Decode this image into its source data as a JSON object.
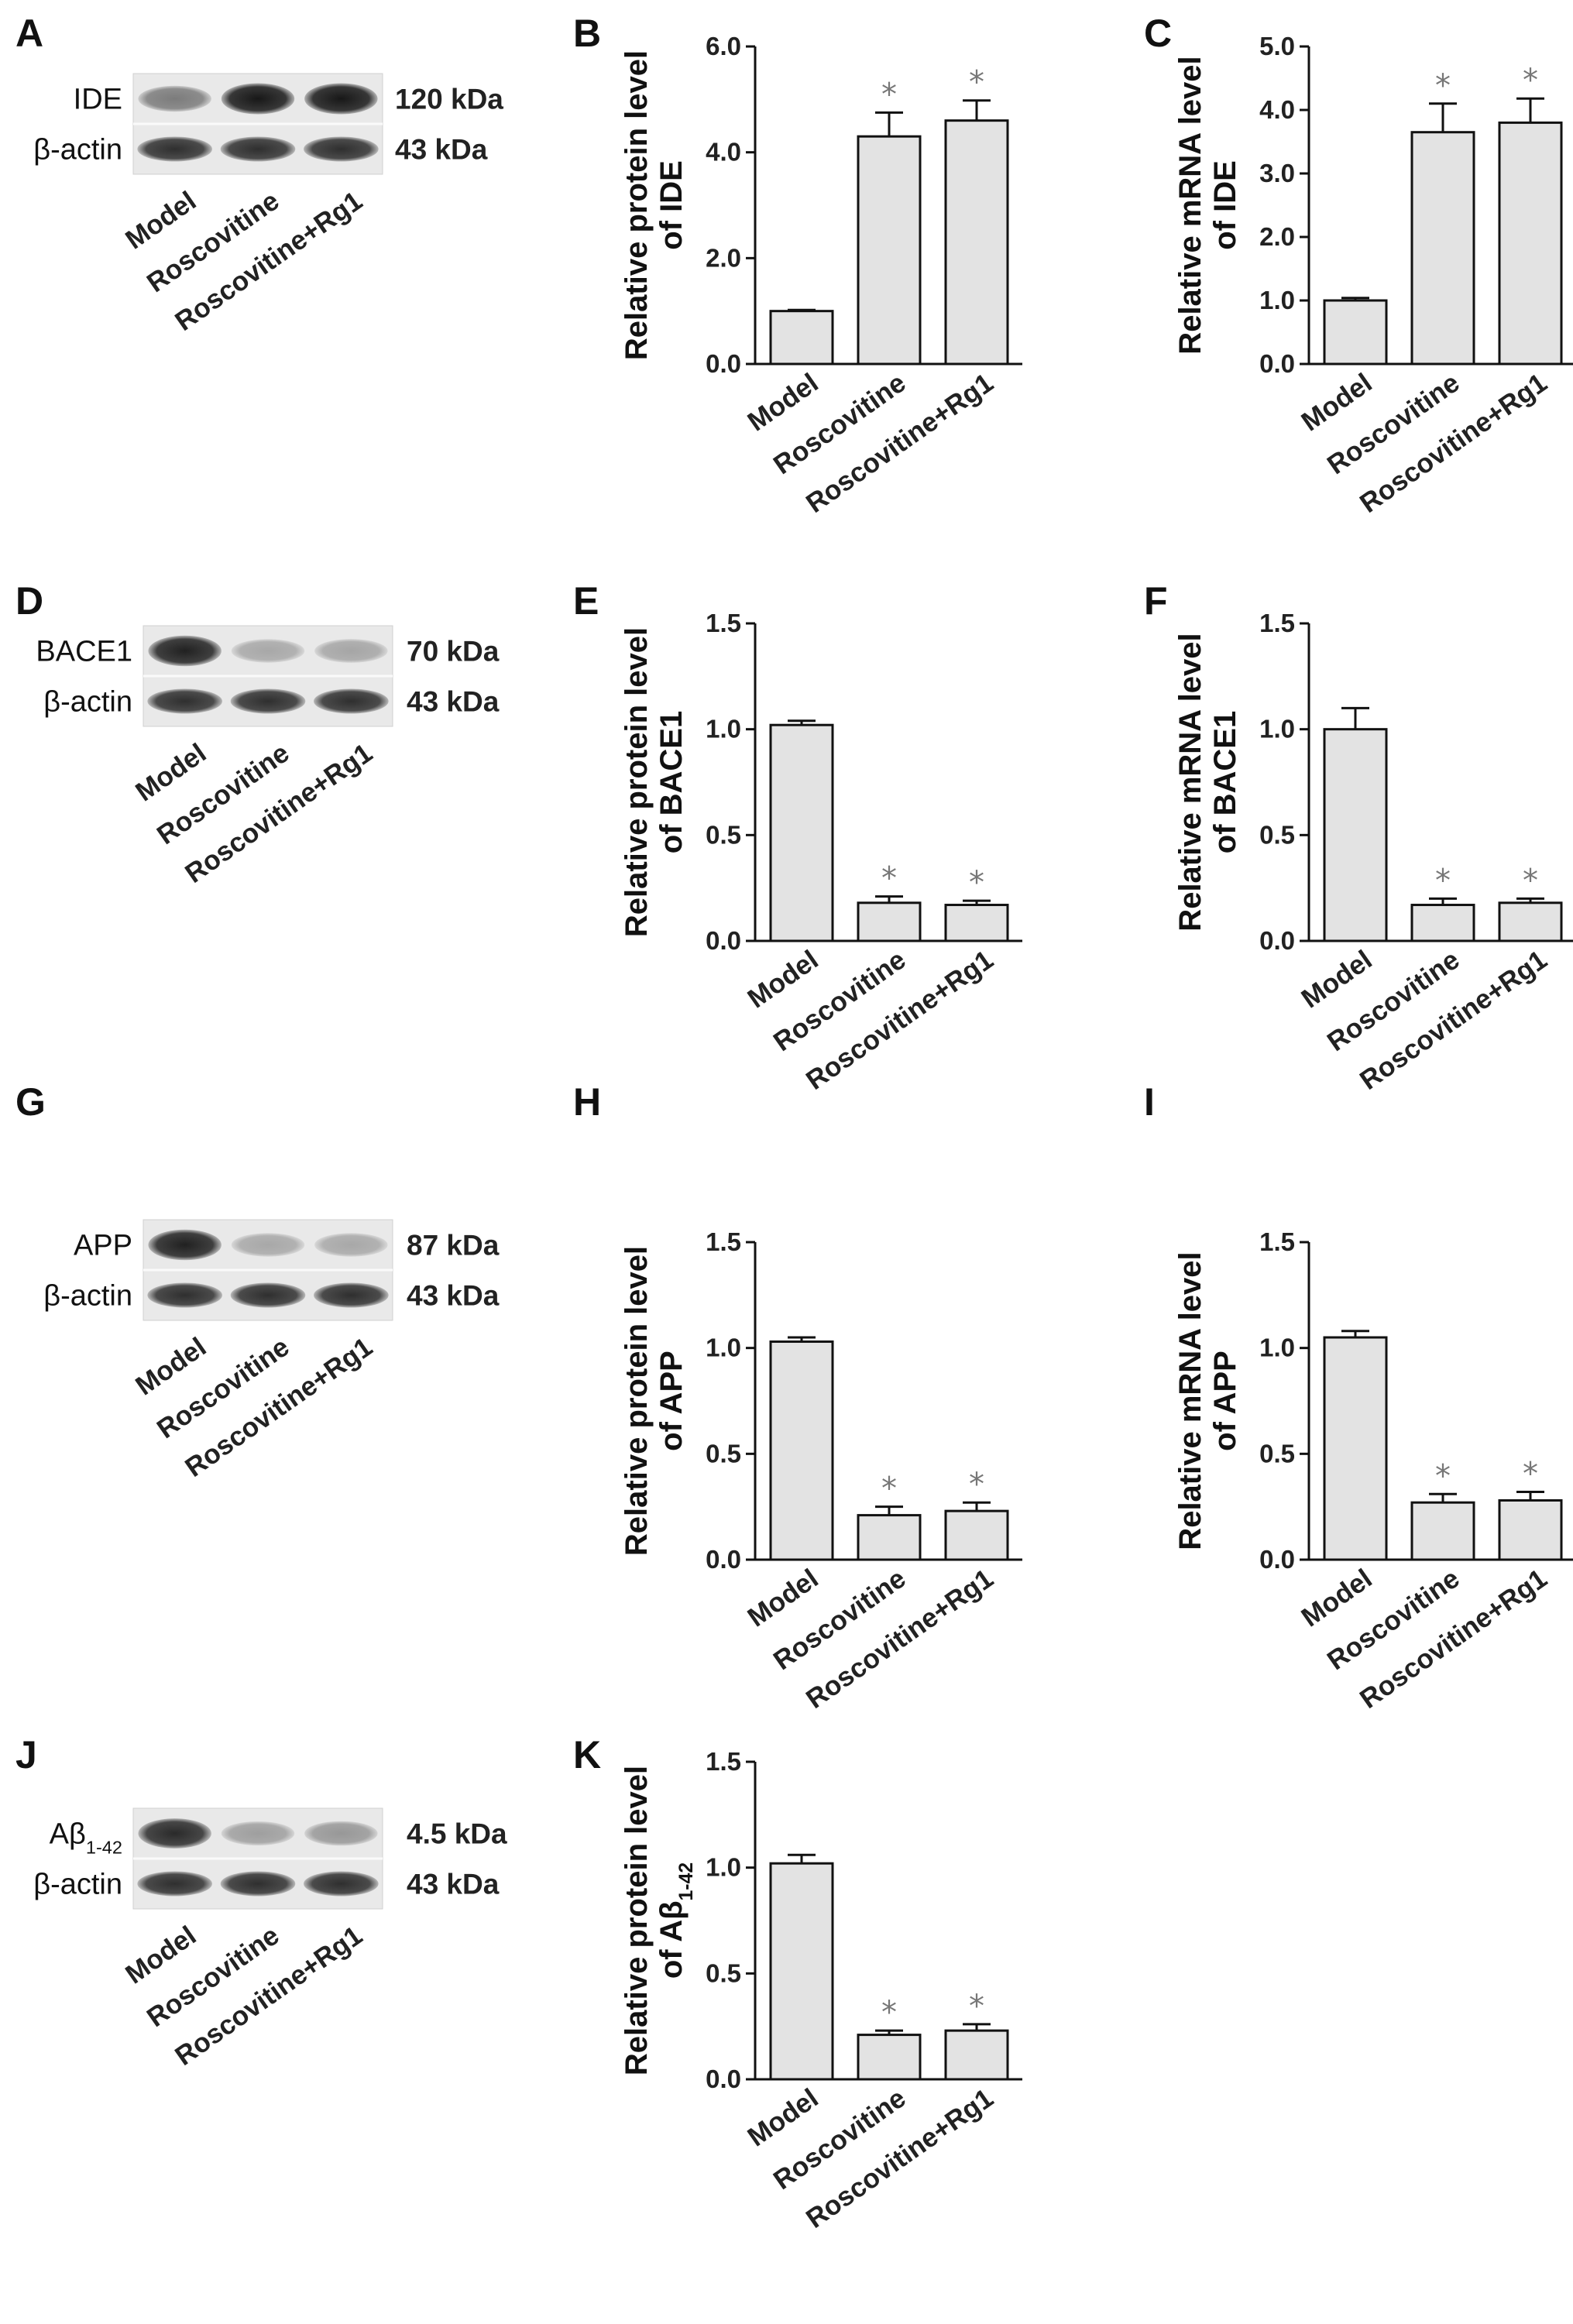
{
  "panels": [
    {
      "letter": "A",
      "kind": "blot",
      "top_band": "IDE",
      "top_band_sub": "",
      "top_kda": "120 kDa",
      "bottom_band": "β-actin",
      "bottom_kda": "43 kDa",
      "lanes": [
        "Model",
        "Roscovitine",
        "Roscovitine+Rg1"
      ],
      "top_intensity": [
        0.45,
        1.0,
        1.0
      ]
    },
    {
      "letter": "D",
      "kind": "blot",
      "top_band": "BACE1",
      "top_band_sub": "",
      "top_kda": "70 kDa",
      "bottom_band": "β-actin",
      "bottom_kda": "43 kDa",
      "lanes": [
        "Model",
        "Roscovitine",
        "Roscovitine+Rg1"
      ],
      "top_intensity": [
        0.95,
        0.2,
        0.22
      ]
    },
    {
      "letter": "G",
      "kind": "blot",
      "top_band": "APP",
      "top_band_sub": "",
      "top_kda": "87 kDa",
      "bottom_band": "β-actin",
      "bottom_kda": "43 kDa",
      "lanes": [
        "Model",
        "Roscovitine",
        "Roscovitine+Rg1"
      ],
      "top_intensity": [
        0.95,
        0.2,
        0.2
      ]
    },
    {
      "letter": "J",
      "kind": "blot",
      "top_band": "Aβ",
      "top_band_sub": "1-42",
      "top_kda": "4.5 kDa",
      "bottom_band": "β-actin",
      "bottom_kda": "43 kDa",
      "lanes": [
        "Model",
        "Roscovitine",
        "Roscovitine+Rg1"
      ],
      "top_intensity": [
        0.9,
        0.25,
        0.3
      ]
    }
  ],
  "chart_data": [
    {
      "letter": "B",
      "type": "bar",
      "categories": [
        "Model",
        "Roscovitine",
        "Roscovitine+Rg1"
      ],
      "values": [
        1.0,
        4.3,
        4.6
      ],
      "errors": [
        0.02,
        0.45,
        0.38
      ],
      "significance": [
        "",
        "*",
        "*"
      ],
      "ylabel_line1": "Relative protein level",
      "ylabel_line2": "of IDE",
      "ylabel_sub": "",
      "ylim": [
        0,
        6
      ],
      "yticks": [
        0,
        2,
        4,
        6
      ],
      "ytick_labels": [
        "0.0",
        "2.0",
        "4.0",
        "6.0"
      ]
    },
    {
      "letter": "C",
      "type": "bar",
      "categories": [
        "Model",
        "Roscovitine",
        "Roscovitine+Rg1"
      ],
      "values": [
        1.0,
        3.65,
        3.8
      ],
      "errors": [
        0.04,
        0.45,
        0.38
      ],
      "significance": [
        "",
        "*",
        "*"
      ],
      "ylabel_line1": "Relative mRNA level",
      "ylabel_line2": "of IDE",
      "ylabel_sub": "",
      "ylim": [
        0,
        5
      ],
      "yticks": [
        0,
        1,
        2,
        3,
        4,
        5
      ],
      "ytick_labels": [
        "0.0",
        "1.0",
        "2.0",
        "3.0",
        "4.0",
        "5.0"
      ]
    },
    {
      "letter": "E",
      "type": "bar",
      "categories": [
        "Model",
        "Roscovitine",
        "Roscovitine+Rg1"
      ],
      "values": [
        1.02,
        0.18,
        0.17
      ],
      "errors": [
        0.02,
        0.03,
        0.02
      ],
      "significance": [
        "",
        "*",
        "*"
      ],
      "ylabel_line1": "Relative protein level",
      "ylabel_line2": "of BACE1",
      "ylabel_sub": "",
      "ylim": [
        0,
        1.5
      ],
      "yticks": [
        0,
        0.5,
        1.0,
        1.5
      ],
      "ytick_labels": [
        "0.0",
        "0.5",
        "1.0",
        "1.5"
      ]
    },
    {
      "letter": "F",
      "type": "bar",
      "categories": [
        "Model",
        "Roscovitine",
        "Roscovitine+Rg1"
      ],
      "values": [
        1.0,
        0.17,
        0.18
      ],
      "errors": [
        0.1,
        0.03,
        0.02
      ],
      "significance": [
        "",
        "*",
        "*"
      ],
      "ylabel_line1": "Relative mRNA level",
      "ylabel_line2": "of BACE1",
      "ylabel_sub": "",
      "ylim": [
        0,
        1.5
      ],
      "yticks": [
        0,
        0.5,
        1.0,
        1.5
      ],
      "ytick_labels": [
        "0.0",
        "0.5",
        "1.0",
        "1.5"
      ]
    },
    {
      "letter": "H",
      "type": "bar",
      "categories": [
        "Model",
        "Roscovitine",
        "Roscovitine+Rg1"
      ],
      "values": [
        1.03,
        0.21,
        0.23
      ],
      "errors": [
        0.02,
        0.04,
        0.04
      ],
      "significance": [
        "",
        "*",
        "*"
      ],
      "ylabel_line1": "Relative protein level",
      "ylabel_line2": "of APP",
      "ylabel_sub": "",
      "ylim": [
        0,
        1.5
      ],
      "yticks": [
        0,
        0.5,
        1.0,
        1.5
      ],
      "ytick_labels": [
        "0.0",
        "0.5",
        "1.0",
        "1.5"
      ]
    },
    {
      "letter": "I",
      "type": "bar",
      "categories": [
        "Model",
        "Roscovitine",
        "Roscovitine+Rg1"
      ],
      "values": [
        1.05,
        0.27,
        0.28
      ],
      "errors": [
        0.03,
        0.04,
        0.04
      ],
      "significance": [
        "",
        "*",
        "*"
      ],
      "ylabel_line1": "Relative mRNA level",
      "ylabel_line2": "of APP",
      "ylabel_sub": "",
      "ylim": [
        0,
        1.5
      ],
      "yticks": [
        0,
        0.5,
        1.0,
        1.5
      ],
      "ytick_labels": [
        "0.0",
        "0.5",
        "1.0",
        "1.5"
      ]
    },
    {
      "letter": "K",
      "type": "bar",
      "categories": [
        "Model",
        "Roscovitine",
        "Roscovitine+Rg1"
      ],
      "values": [
        1.02,
        0.21,
        0.23
      ],
      "errors": [
        0.04,
        0.02,
        0.03
      ],
      "significance": [
        "",
        "*",
        "*"
      ],
      "ylabel_line1": "Relative protein level",
      "ylabel_line2": "of Aβ",
      "ylabel_sub": "1-42",
      "ylim": [
        0,
        1.5
      ],
      "yticks": [
        0,
        0.5,
        1.0,
        1.5
      ],
      "ytick_labels": [
        "0.0",
        "0.5",
        "1.0",
        "1.5"
      ]
    }
  ]
}
